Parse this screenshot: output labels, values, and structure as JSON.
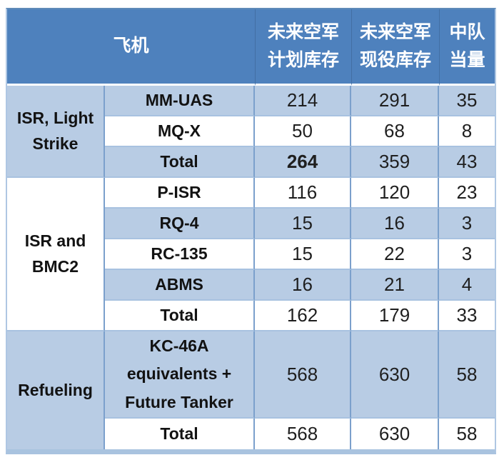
{
  "table": {
    "header": {
      "aircraft": "飞机",
      "planned": {
        "line1": "未来空军",
        "line2": "计划库存"
      },
      "active": {
        "line1": "未来空军",
        "line2": "现役库存"
      },
      "squadron": {
        "line1": "中队",
        "line2": "当量"
      }
    },
    "groups": [
      {
        "label_lines": [
          "ISR, Light",
          "Strike"
        ],
        "rows": [
          {
            "name": "MM-UAS",
            "planned": "214",
            "active": "291",
            "squadron": "35"
          },
          {
            "name": "MQ-X",
            "planned": "50",
            "active": "68",
            "squadron": "8"
          },
          {
            "name": "Total",
            "planned": "264",
            "active": "359",
            "squadron": "43"
          }
        ]
      },
      {
        "label_lines": [
          "ISR and",
          "BMC2"
        ],
        "rows": [
          {
            "name": "P-ISR",
            "planned": "116",
            "active": "120",
            "squadron": "23"
          },
          {
            "name": "RQ-4",
            "planned": "15",
            "active": "16",
            "squadron": "3"
          },
          {
            "name": "RC-135",
            "planned": "15",
            "active": "22",
            "squadron": "3"
          },
          {
            "name": "ABMS",
            "planned": "16",
            "active": "21",
            "squadron": "4"
          },
          {
            "name": "Total",
            "planned": "162",
            "active": "179",
            "squadron": "33"
          }
        ]
      },
      {
        "label_lines": [
          "Refueling"
        ],
        "rows": [
          {
            "name_lines": [
              "KC-46A",
              "equivalents +",
              "Future Tanker"
            ],
            "planned": "568",
            "active": "630",
            "squadron": "58"
          },
          {
            "name": "Total",
            "planned": "568",
            "active": "630",
            "squadron": "58"
          }
        ]
      }
    ],
    "colors": {
      "header_bg": "#4E81BD",
      "stripe_bg": "#B8CCE4",
      "white_bg": "#FFFFFF",
      "grid_vertical": "#7BA0CC",
      "grid_horizontal": "#A8C2E0",
      "bottom_bar": "#A9C3DF",
      "header_text": "#FFFFFF",
      "body_text": "#1F1F1F"
    }
  }
}
